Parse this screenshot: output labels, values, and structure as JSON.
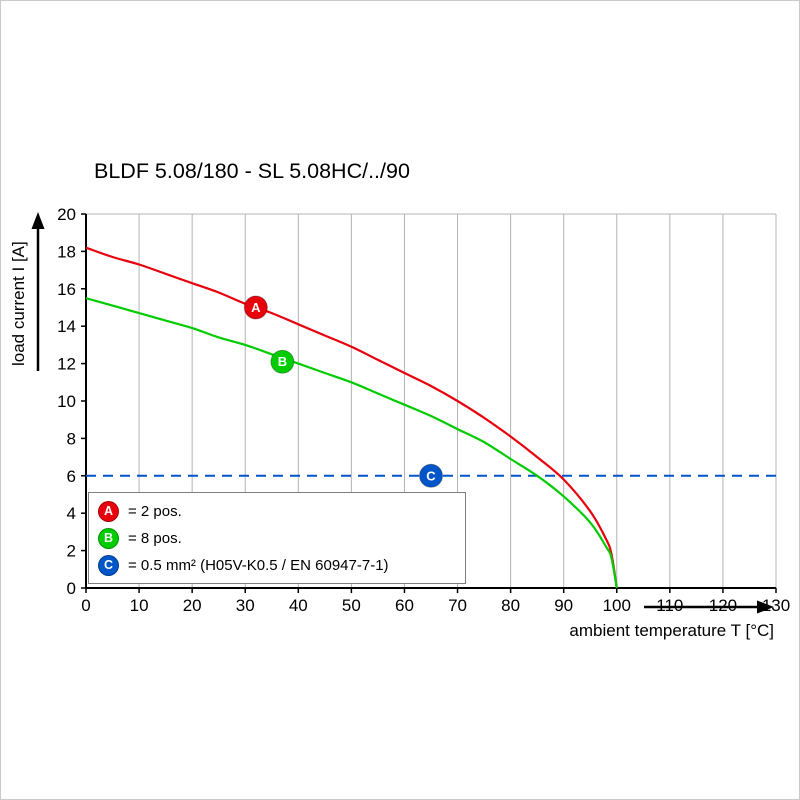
{
  "title": "BLDF 5.08/180 - SL 5.08HC/../90",
  "axes": {
    "x_label": "ambient temperature T [°C]",
    "y_label": "load current I [A]"
  },
  "chart_data": {
    "type": "line",
    "title": "BLDF 5.08/180 - SL 5.08HC/../90",
    "xlabel": "ambient temperature T [°C]",
    "ylabel": "load current I [A]",
    "xlim": [
      0,
      130
    ],
    "ylim": [
      0,
      20
    ],
    "x_ticks": [
      0,
      10,
      20,
      30,
      40,
      50,
      60,
      70,
      80,
      90,
      100,
      110,
      120,
      130
    ],
    "y_ticks": [
      0,
      2,
      4,
      6,
      8,
      10,
      12,
      14,
      16,
      18,
      20
    ],
    "grid": "vertical",
    "legend_position": "inside bottom-left",
    "series": [
      {
        "name": "A",
        "label": "2 pos.",
        "color": "#e8000c",
        "line_style": "solid",
        "marker": {
          "x": 32,
          "y": 15.0
        },
        "points": [
          [
            0,
            18.2
          ],
          [
            5,
            17.7
          ],
          [
            10,
            17.3
          ],
          [
            15,
            16.8
          ],
          [
            20,
            16.3
          ],
          [
            25,
            15.8
          ],
          [
            30,
            15.2
          ],
          [
            35,
            14.7
          ],
          [
            40,
            14.1
          ],
          [
            45,
            13.5
          ],
          [
            50,
            12.9
          ],
          [
            55,
            12.2
          ],
          [
            60,
            11.5
          ],
          [
            65,
            10.8
          ],
          [
            70,
            10.0
          ],
          [
            75,
            9.1
          ],
          [
            80,
            8.1
          ],
          [
            85,
            7.0
          ],
          [
            90,
            5.8
          ],
          [
            95,
            4.1
          ],
          [
            98,
            2.6
          ],
          [
            99,
            1.8
          ],
          [
            100,
            0
          ]
        ]
      },
      {
        "name": "B",
        "label": "8 pos.",
        "color": "#00cc00",
        "line_style": "solid",
        "marker": {
          "x": 37,
          "y": 12.1
        },
        "points": [
          [
            0,
            15.5
          ],
          [
            5,
            15.1
          ],
          [
            10,
            14.7
          ],
          [
            15,
            14.3
          ],
          [
            20,
            13.9
          ],
          [
            25,
            13.4
          ],
          [
            30,
            13.0
          ],
          [
            35,
            12.5
          ],
          [
            40,
            12.0
          ],
          [
            45,
            11.5
          ],
          [
            50,
            11.0
          ],
          [
            55,
            10.4
          ],
          [
            60,
            9.8
          ],
          [
            65,
            9.2
          ],
          [
            70,
            8.5
          ],
          [
            75,
            7.8
          ],
          [
            80,
            6.9
          ],
          [
            85,
            6.0
          ],
          [
            90,
            4.9
          ],
          [
            95,
            3.5
          ],
          [
            98,
            2.2
          ],
          [
            99,
            1.6
          ],
          [
            100,
            0
          ]
        ]
      },
      {
        "name": "C",
        "label": "0.5 mm² (H05V-K0.5 / EN 60947-7-1)",
        "color": "#0055c8",
        "line_style": "dashed",
        "marker": {
          "x": 65,
          "y": 6
        },
        "points": [
          [
            0,
            6
          ],
          [
            130,
            6
          ]
        ]
      }
    ]
  },
  "legend": {
    "items": [
      {
        "letter": "A",
        "color": "#e8000c",
        "text": "= 2 pos."
      },
      {
        "letter": "B",
        "color": "#00cc00",
        "text": "= 8 pos."
      },
      {
        "letter": "C",
        "color": "#0055c8",
        "text": "= 0.5 mm² (H05V-K0.5 / EN 60947-7-1)"
      }
    ]
  }
}
